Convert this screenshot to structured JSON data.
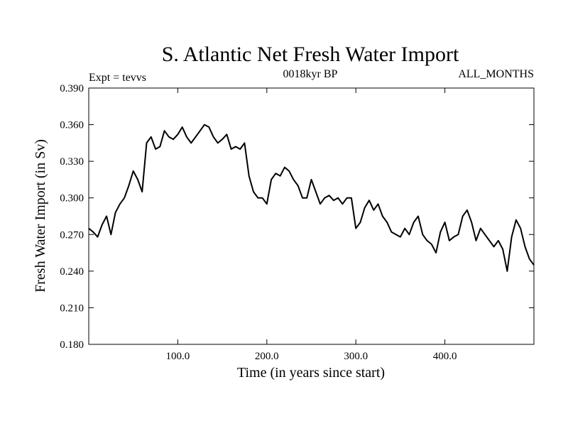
{
  "chart_data": {
    "type": "line",
    "title": "S. Atlantic Net Fresh Water Import",
    "subtitle_left": "Expt = tevvs",
    "subtitle_center": "0018kyr BP",
    "subtitle_right": "ALL_MONTHS",
    "xlabel": "Time (in years since start)",
    "ylabel": "Fresh Water Import (in Sv)",
    "xlim": [
      0,
      500
    ],
    "ylim": [
      0.18,
      0.39
    ],
    "xticks": [
      100,
      200,
      300,
      400
    ],
    "xtick_labels": [
      "100.0",
      "200.0",
      "300.0",
      "400.0"
    ],
    "yticks": [
      0.18,
      0.21,
      0.24,
      0.27,
      0.3,
      0.33,
      0.36,
      0.39
    ],
    "ytick_labels": [
      "0.180",
      "0.210",
      "0.240",
      "0.270",
      "0.300",
      "0.330",
      "0.360",
      "0.390"
    ],
    "grid": false,
    "line_color": "#000000",
    "series": [
      {
        "x": [
          0,
          5,
          10,
          15,
          20,
          25,
          30,
          35,
          40,
          45,
          50,
          55,
          60,
          65,
          70,
          75,
          80,
          85,
          90,
          95,
          100,
          105,
          110,
          115,
          120,
          125,
          130,
          135,
          140,
          145,
          150,
          155,
          160,
          165,
          170,
          175,
          180,
          185,
          190,
          195,
          200,
          205,
          210,
          215,
          220,
          225,
          230,
          235,
          240,
          245,
          250,
          255,
          260,
          265,
          270,
          275,
          280,
          285,
          290,
          295,
          300,
          305,
          310,
          315,
          320,
          325,
          330,
          335,
          340,
          345,
          350,
          355,
          360,
          365,
          370,
          375,
          380,
          385,
          390,
          395,
          400,
          405,
          410,
          415,
          420,
          425,
          430,
          435,
          440,
          445,
          450,
          455,
          460,
          465,
          470,
          475,
          480,
          485,
          490,
          495,
          500
        ],
        "values": [
          0.275,
          0.272,
          0.268,
          0.278,
          0.285,
          0.27,
          0.288,
          0.295,
          0.3,
          0.31,
          0.322,
          0.315,
          0.305,
          0.345,
          0.35,
          0.34,
          0.342,
          0.355,
          0.35,
          0.348,
          0.352,
          0.358,
          0.35,
          0.345,
          0.35,
          0.355,
          0.36,
          0.358,
          0.35,
          0.345,
          0.348,
          0.352,
          0.34,
          0.342,
          0.34,
          0.345,
          0.318,
          0.305,
          0.3,
          0.3,
          0.295,
          0.315,
          0.32,
          0.318,
          0.325,
          0.322,
          0.315,
          0.31,
          0.3,
          0.3,
          0.315,
          0.305,
          0.295,
          0.3,
          0.302,
          0.298,
          0.3,
          0.295,
          0.3,
          0.3,
          0.275,
          0.28,
          0.292,
          0.298,
          0.29,
          0.295,
          0.285,
          0.28,
          0.272,
          0.27,
          0.268,
          0.275,
          0.27,
          0.28,
          0.285,
          0.27,
          0.265,
          0.262,
          0.255,
          0.272,
          0.28,
          0.265,
          0.268,
          0.27,
          0.285,
          0.29,
          0.28,
          0.265,
          0.275,
          0.27,
          0.265,
          0.26,
          0.265,
          0.258,
          0.24,
          0.268,
          0.282,
          0.275,
          0.26,
          0.25,
          0.245
        ]
      }
    ]
  }
}
